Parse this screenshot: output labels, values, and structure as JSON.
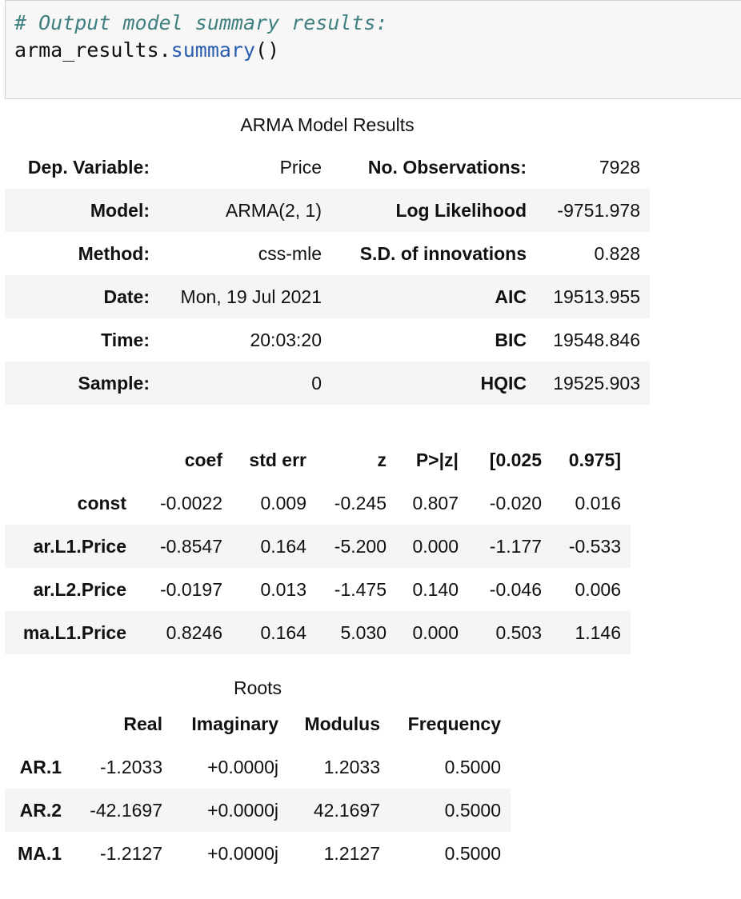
{
  "code_cell": {
    "comment": "# Output model summary results:",
    "object": "arma_results.",
    "method": "summary",
    "call": "()"
  },
  "summary": {
    "caption": "ARMA Model Results",
    "rows": [
      {
        "l1": "Dep. Variable:",
        "v1": "Price",
        "l2": "No. Observations:",
        "v2": "7928"
      },
      {
        "l1": "Model:",
        "v1": "ARMA(2, 1)",
        "l2": "Log Likelihood",
        "v2": "-9751.978"
      },
      {
        "l1": "Method:",
        "v1": "css-mle",
        "l2": "S.D. of innovations",
        "v2": "0.828"
      },
      {
        "l1": "Date:",
        "v1": "Mon, 19 Jul 2021",
        "l2": "AIC",
        "v2": "19513.955"
      },
      {
        "l1": "Time:",
        "v1": "20:03:20",
        "l2": "BIC",
        "v2": "19548.846"
      },
      {
        "l1": "Sample:",
        "v1": "0",
        "l2": "HQIC",
        "v2": "19525.903"
      }
    ]
  },
  "coef_table": {
    "headers": [
      "",
      "coef",
      "std err",
      "z",
      "P>|z|",
      "[0.025",
      "0.975]"
    ],
    "rows": [
      [
        "const",
        "-0.0022",
        "0.009",
        "-0.245",
        "0.807",
        "-0.020",
        "0.016"
      ],
      [
        "ar.L1.Price",
        "-0.8547",
        "0.164",
        "-5.200",
        "0.000",
        "-1.177",
        "-0.533"
      ],
      [
        "ar.L2.Price",
        "-0.0197",
        "0.013",
        "-1.475",
        "0.140",
        "-0.046",
        "0.006"
      ],
      [
        "ma.L1.Price",
        "0.8246",
        "0.164",
        "5.030",
        "0.000",
        "0.503",
        "1.146"
      ]
    ]
  },
  "roots_table": {
    "caption": "Roots",
    "headers": [
      "",
      "Real",
      "Imaginary",
      "Modulus",
      "Frequency"
    ],
    "rows": [
      [
        "AR.1",
        "-1.2033",
        "+0.0000j",
        "1.2033",
        "0.5000"
      ],
      [
        "AR.2",
        "-42.1697",
        "+0.0000j",
        "42.1697",
        "0.5000"
      ],
      [
        "MA.1",
        "-1.2127",
        "+0.0000j",
        "1.2127",
        "0.5000"
      ]
    ]
  }
}
